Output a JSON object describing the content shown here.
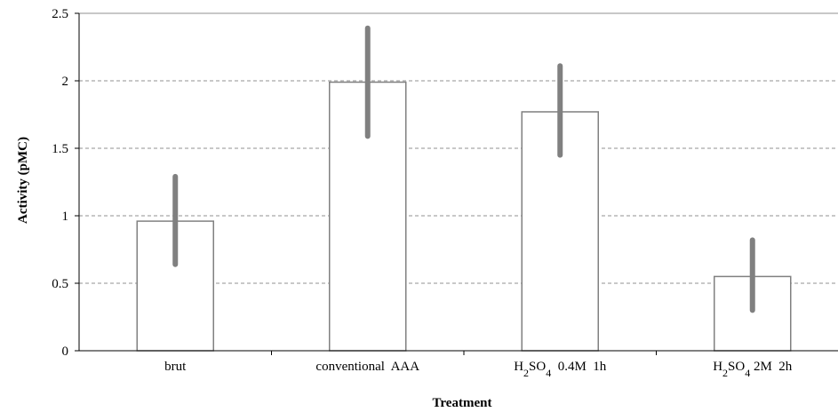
{
  "chart_data": {
    "type": "bar",
    "categories": [
      {
        "pre": "",
        "sub1": "",
        "mid": "",
        "sub2": "",
        "post": "brut"
      },
      {
        "pre": "",
        "sub1": "",
        "mid": "",
        "sub2": "",
        "post": "conventional  AAA"
      },
      {
        "pre": "H",
        "sub1": "2",
        "mid": "SO",
        "sub2": "4",
        "post": "  0.4M  1h"
      },
      {
        "pre": "H",
        "sub1": "2",
        "mid": "SO",
        "sub2": "4",
        "post": " 2M  2h"
      }
    ],
    "values": [
      0.96,
      1.99,
      1.77,
      0.55
    ],
    "error_low": [
      0.64,
      1.59,
      1.45,
      0.3
    ],
    "error_high": [
      1.29,
      2.39,
      2.11,
      0.82
    ],
    "title": "",
    "xlabel": "Treatment",
    "ylabel": "Activity  (pMC)",
    "ylim": [
      0,
      2.5
    ],
    "yticks": [
      "0",
      "0.5",
      "1",
      "1.5",
      "2",
      "2.5"
    ],
    "grid": "horizontal dashed",
    "legend": "none",
    "colors": {
      "bar_fill": "#ffffff",
      "bar_stroke": "#808080",
      "error_bar": "#808080",
      "grid": "#a6a6a6",
      "axis": "#000000"
    }
  }
}
